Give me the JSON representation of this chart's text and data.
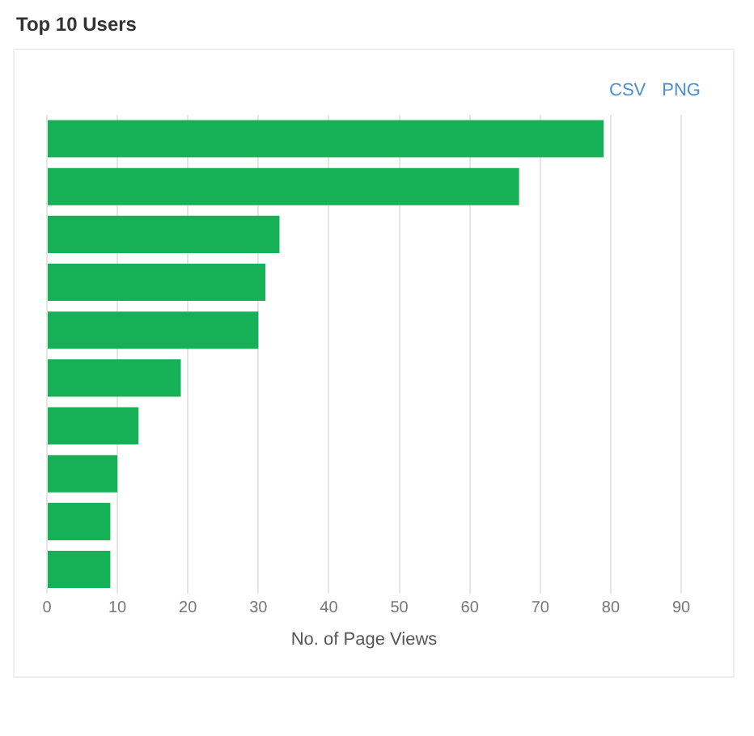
{
  "chart_data": {
    "type": "bar",
    "title": "Top 10 Users",
    "orientation": "horizontal",
    "categories": [
      null,
      null,
      null,
      null,
      null,
      null,
      null,
      null,
      null,
      null
    ],
    "values": [
      79,
      67,
      33,
      31,
      30,
      19,
      13,
      10,
      9,
      9
    ],
    "color": "#16b157",
    "xlabel": "No. of Page Views",
    "xlim": [
      0,
      90
    ],
    "xticks": [
      0,
      10,
      20,
      30,
      40,
      50,
      60,
      70,
      80,
      90
    ],
    "grid": "x",
    "tick_labels": "x",
    "legend": false,
    "annotations": [
      "CSV",
      "PNG"
    ]
  }
}
